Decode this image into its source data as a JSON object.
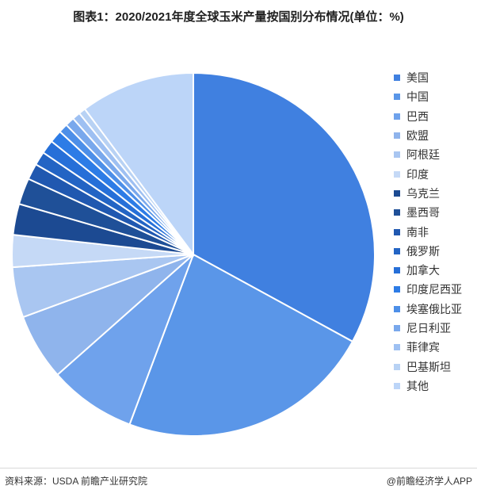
{
  "title": "图表1：2020/2021年度全球玉米产量按国别分布情况(单位：%)",
  "chart_data": {
    "type": "pie",
    "categories": [
      "美国",
      "中国",
      "巴西",
      "欧盟",
      "阿根廷",
      "印度",
      "乌克兰",
      "墨西哥",
      "南非",
      "俄罗斯",
      "加拿大",
      "印度尼西亚",
      "埃塞俄比亚",
      "尼日利亚",
      "菲律宾",
      "巴基斯坦",
      "其他"
    ],
    "values": [
      32.3,
      22.3,
      7.6,
      5.8,
      4.4,
      2.8,
      2.7,
      2.3,
      1.4,
      1.2,
      1.2,
      1.1,
      0.8,
      0.8,
      0.7,
      0.6,
      10.0
    ],
    "colors": [
      "#4080e0",
      "#5a96e8",
      "#6fa2ec",
      "#8fb4ec",
      "#a9c6f1",
      "#c5d9f6",
      "#1c4a92",
      "#1f5098",
      "#2058b0",
      "#2364c4",
      "#266fd8",
      "#2d7ce6",
      "#4d8fe8",
      "#79a8ec",
      "#9ec0f2",
      "#b8d2f4",
      "#bcd5f8"
    ],
    "legend_position": "right"
  },
  "footer": {
    "source": "资料来源：USDA 前瞻产业研究院",
    "brand": "@前瞻经济学人APP"
  }
}
